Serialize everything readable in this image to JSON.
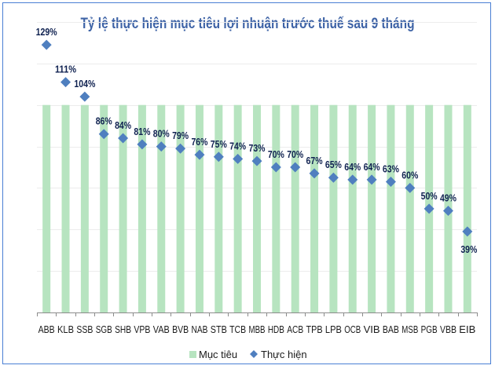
{
  "chart_data": {
    "type": "bar",
    "title": "Tỷ lệ thực hiện mục tiêu lợi nhuận trước thuế sau 9 tháng",
    "xlabel": "",
    "ylabel": "",
    "ylim": [
      0,
      140
    ],
    "grid": true,
    "legend_position": "bottom",
    "categories": [
      "ABB",
      "KLB",
      "SSB",
      "SGB",
      "SHB",
      "VPB",
      "VAB",
      "BVB",
      "NAB",
      "STB",
      "TCB",
      "MBB",
      "HDB",
      "ACB",
      "TPB",
      "LPB",
      "OCB",
      "VIB",
      "BAB",
      "MSB",
      "PGB",
      "VBB",
      "EIB"
    ],
    "series": [
      {
        "name": "Mục tiêu",
        "type": "bar",
        "color": "#b7e4c0",
        "values": [
          100,
          100,
          100,
          100,
          100,
          100,
          100,
          100,
          100,
          100,
          100,
          100,
          100,
          100,
          100,
          100,
          100,
          100,
          100,
          100,
          100,
          100,
          100
        ]
      },
      {
        "name": "Thực hiện",
        "type": "scatter",
        "marker": "diamond",
        "color": "#4f7fbf",
        "values": [
          129,
          111,
          104,
          86,
          84,
          81,
          80,
          79,
          76,
          75,
          74,
          73,
          70,
          70,
          67,
          65,
          64,
          64,
          63,
          60,
          50,
          49,
          39
        ],
        "labels": [
          "129%",
          "111%",
          "104%",
          "86%",
          "84%",
          "81%",
          "80%",
          "79%",
          "76%",
          "75%",
          "74%",
          "73%",
          "70%",
          "70%",
          "67%",
          "65%",
          "64%",
          "64%",
          "63%",
          "60%",
          "50%",
          "49%",
          "39%"
        ]
      }
    ]
  }
}
